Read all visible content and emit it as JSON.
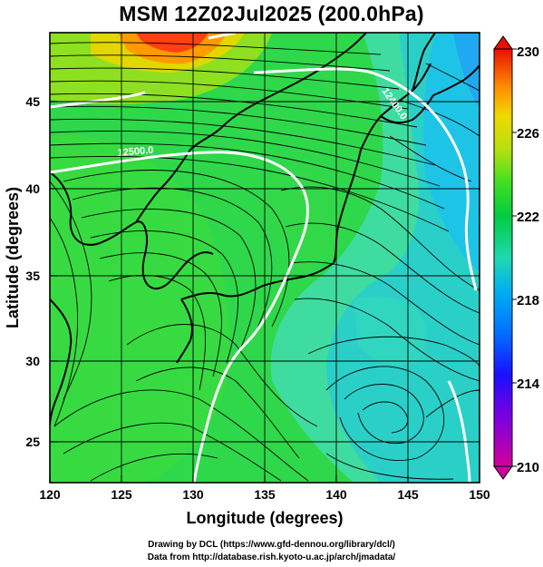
{
  "title": "MSM 12Z02Jul2025 (200.0hPa)",
  "x_axis": {
    "label": "Longitude (degrees)",
    "min": 120,
    "max": 150,
    "ticks": [
      "120",
      "125",
      "130",
      "135",
      "140",
      "145",
      "150"
    ]
  },
  "y_axis": {
    "label": "Latitude  (degrees)",
    "min": 22.4,
    "max": 47.6,
    "ticks": [
      "25",
      "30",
      "35",
      "40",
      "45"
    ]
  },
  "colorbar": {
    "min": 210,
    "max": 230,
    "labels": [
      "230",
      "226",
      "222",
      "218",
      "214",
      "210"
    ],
    "colors": [
      "#d8008f",
      "#8a00d0",
      "#2a00ff",
      "#0066ff",
      "#00a8ff",
      "#20d8d0",
      "#00d060",
      "#30e030",
      "#9fe020",
      "#f0e000",
      "#ff9a00",
      "#ff4000",
      "#e00000"
    ]
  },
  "contours": [
    {
      "label": "12400.0",
      "color": "#ffffff"
    },
    {
      "label": "12500.0",
      "color": "#ffffff"
    }
  ],
  "credits": {
    "line1": "Drawing by DCL (https://www.gfd-dennou.org/library/dcl/)",
    "line2": "Data from http://database.rish.kyoto-u.ac.jp/arch/jmadata/"
  }
}
